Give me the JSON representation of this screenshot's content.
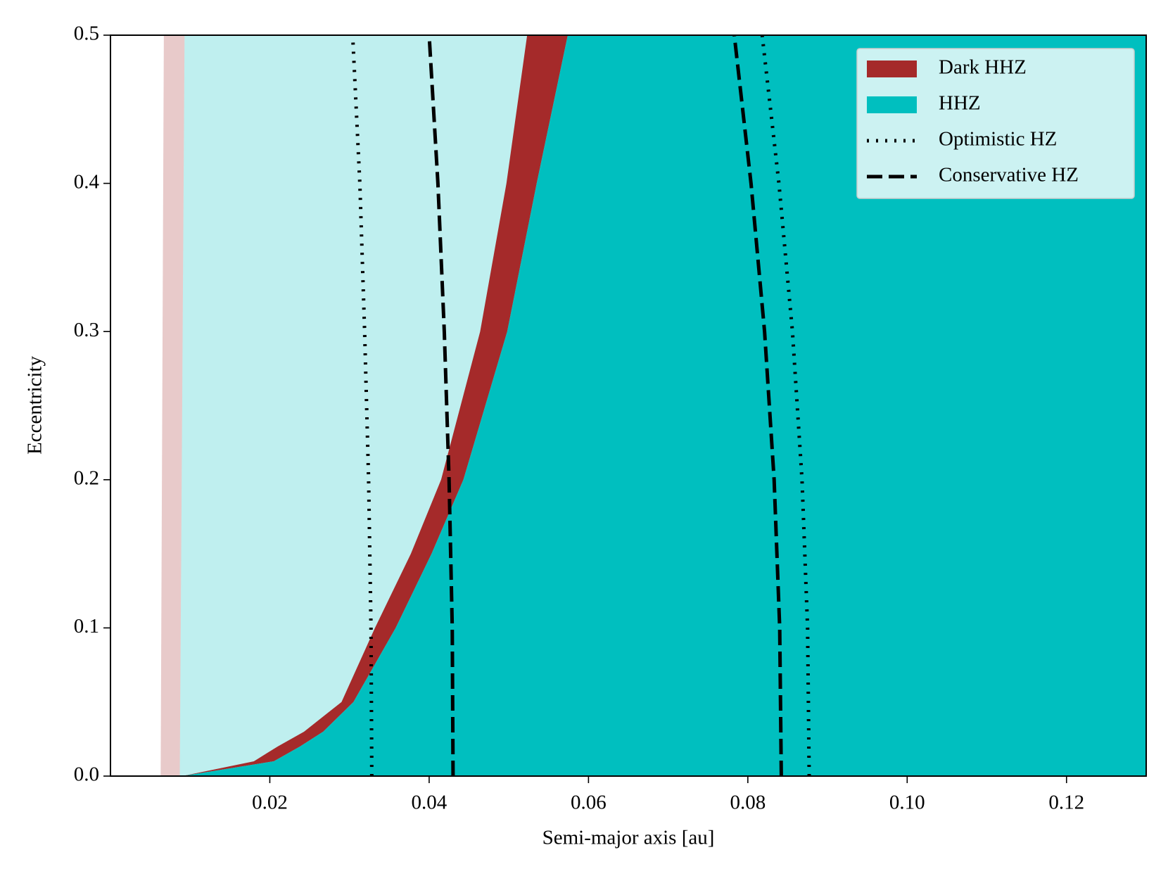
{
  "chart_data": {
    "type": "band",
    "xlabel": "Semi-major axis [au]",
    "ylabel": "Eccentricity",
    "xlim": [
      0,
      0.13
    ],
    "ylim": [
      0,
      0.5
    ],
    "xticks": [
      0.02,
      0.04,
      0.06,
      0.08,
      {
        "value": 0.1,
        "label": "0.10"
      },
      0.12
    ],
    "yticks": [
      {
        "value": 0,
        "label": "0.0"
      },
      0.1,
      0.2,
      0.3,
      0.4,
      0.5
    ],
    "grid": false,
    "legend": "upper right",
    "series": [
      {
        "name": "Dark HHZ",
        "style": "band",
        "color": "#a52a2a",
        "y": [
          0,
          0.01,
          0.02,
          0.03,
          0.05,
          0.1,
          0.15,
          0.2,
          0.3,
          0.4,
          0.5
        ],
        "x_inner": [
          0.009,
          0.018,
          0.021,
          0.0243,
          0.029,
          0.0332,
          0.0377,
          0.0415,
          0.0464,
          0.0497,
          0.0523
        ],
        "x_outer": [
          0.009,
          0.0205,
          0.0238,
          0.0267,
          0.0305,
          0.0358,
          0.0403,
          0.0443,
          0.0498,
          0.0535,
          0.0574
        ],
        "light_alpha": 0.25,
        "light_y": [
          0,
          0.5
        ],
        "light_x_inner": [
          0.0063,
          0.0067
        ],
        "light_x_outer": [
          0.0087,
          0.0093
        ]
      },
      {
        "name": "HHZ",
        "style": "beyond",
        "color": "#00bfbf",
        "light_alpha": 0.25
      },
      {
        "name": "Optimistic HZ",
        "style": "dotted",
        "color": "#000000",
        "y": [
          0,
          0.1,
          0.2,
          0.3,
          0.4,
          0.5
        ],
        "x_inner": [
          0.0328,
          0.0327,
          0.0324,
          0.0319,
          0.0313,
          0.0304
        ],
        "x_outer": [
          0.0877,
          0.0875,
          0.0868,
          0.0856,
          0.0839,
          0.0818
        ]
      },
      {
        "name": "Conservative HZ",
        "style": "dashed",
        "color": "#000000",
        "y": [
          0,
          0.1,
          0.2,
          0.3,
          0.4,
          0.5
        ],
        "x_inner": [
          0.043,
          0.0429,
          0.0425,
          0.0419,
          0.0411,
          0.04
        ],
        "x_outer": [
          0.0842,
          0.084,
          0.0833,
          0.0821,
          0.0804,
          0.0783
        ]
      }
    ]
  }
}
